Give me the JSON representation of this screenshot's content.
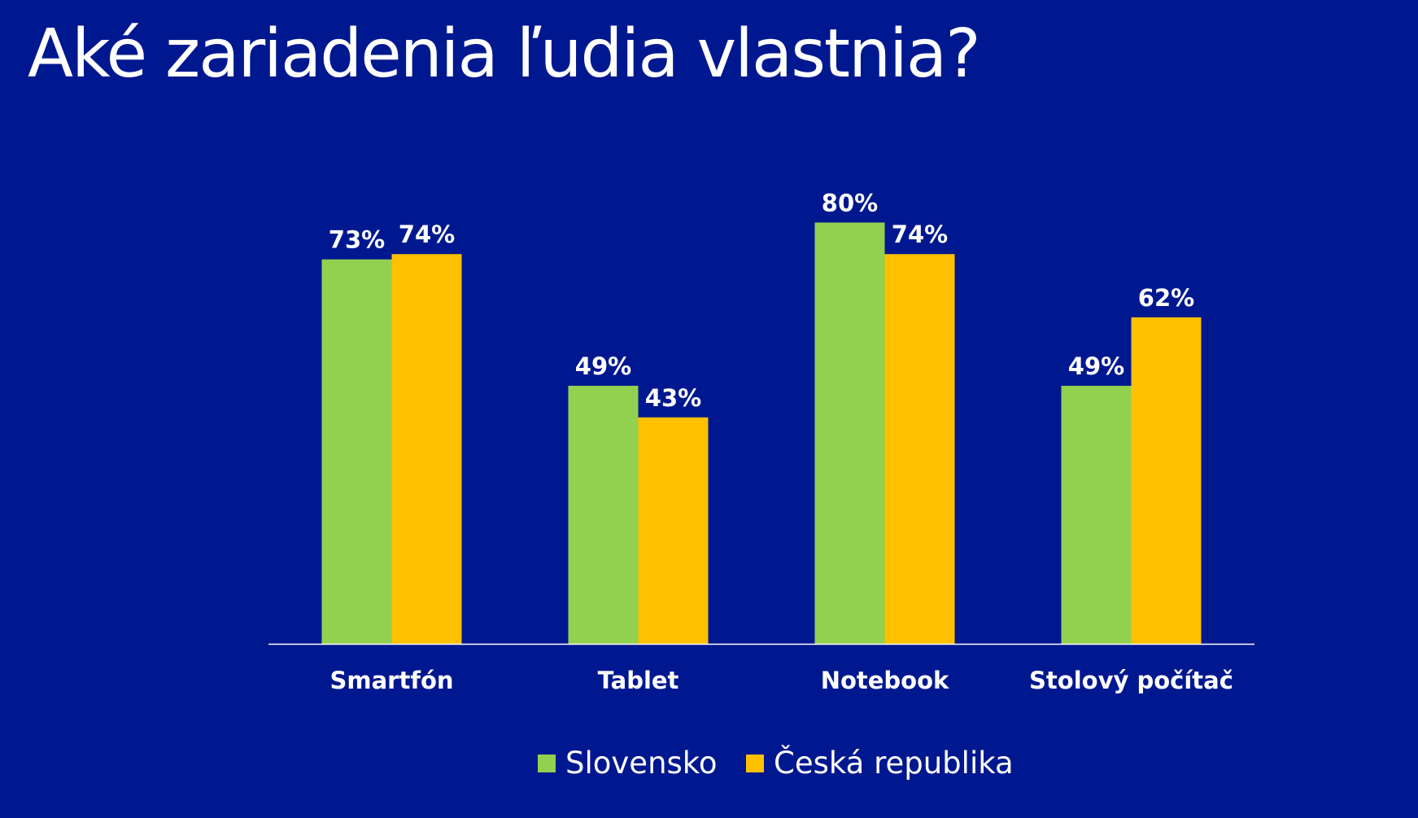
{
  "title": "Aké zariadenia ľudia vlastnia?",
  "colors": {
    "background": "#00188F",
    "slovensko": "#92D050",
    "ceska_republika": "#FFC000",
    "text": "#FFFFFF"
  },
  "chart_data": {
    "type": "bar",
    "title": "",
    "xlabel": "",
    "ylabel": "",
    "categories": [
      "Smartfón",
      "Tablet",
      "Notebook",
      "Stolový počítač"
    ],
    "series": [
      {
        "name": "Slovensko",
        "values": [
          73,
          49,
          80,
          49
        ],
        "labels": [
          "73%",
          "49%",
          "80%",
          "49%"
        ],
        "color": "#92D050"
      },
      {
        "name": "Česká republika",
        "values": [
          74,
          43,
          74,
          62
        ],
        "labels": [
          "74%",
          "43%",
          "74%",
          "62%"
        ],
        "color": "#FFC000"
      }
    ],
    "ylim": [
      0,
      100
    ],
    "grid": false,
    "legend": "bottom"
  }
}
